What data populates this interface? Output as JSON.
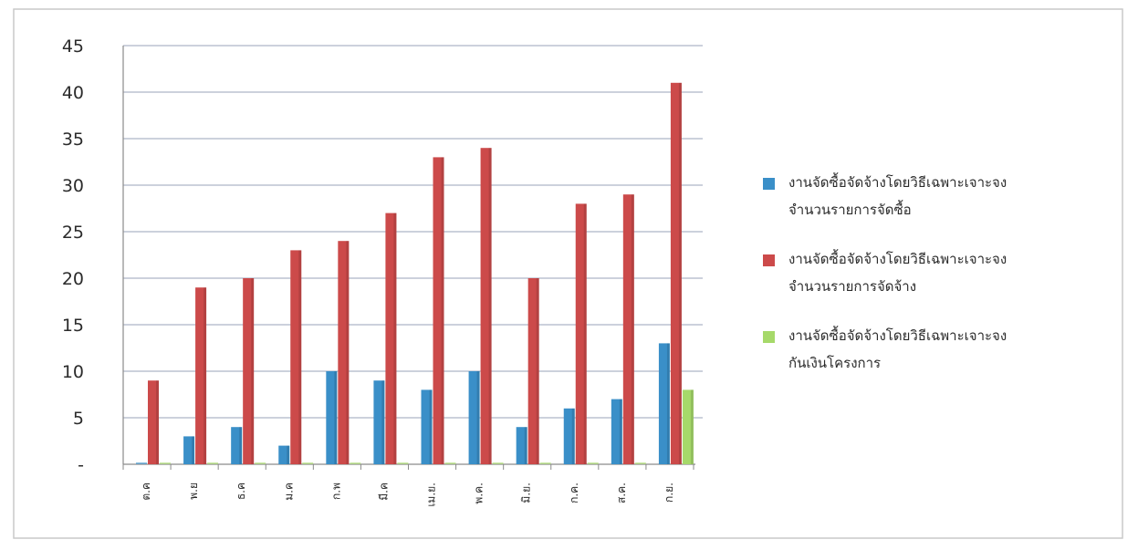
{
  "chart_data": {
    "type": "bar",
    "categories": [
      "ต.ค",
      "พ.ย",
      "ธ.ค",
      "ม.ค",
      "ก.พ",
      "มี.ค",
      "เม.ย.",
      "พ.ค.",
      "มิ.ย.",
      "ก.ค.",
      "ส.ค.",
      "ก.ย."
    ],
    "series": [
      {
        "name": "งานจัดซื้อจัดจ้างโดยวิธีเฉพาะเจาะจง จำนวนรายการจัดซื้อ",
        "name_lines": [
          "งานจัดซื้อจัดจ้างโดยวิธีเฉพาะเจาะจง",
          "จำนวนรายการจัดซื้อ"
        ],
        "color": "#3a8fc8",
        "values": [
          0,
          3,
          4,
          2,
          10,
          9,
          8,
          10,
          4,
          6,
          7,
          13
        ]
      },
      {
        "name": "งานจัดซื้อจัดจ้างโดยวิธีเฉพาะเจาะจง จำนวนรายการจัดจ้าง",
        "name_lines": [
          "งานจัดซื้อจัดจ้างโดยวิธีเฉพาะเจาะจง",
          "จำนวนรายการจัดจ้าง"
        ],
        "color": "#cc4a4a",
        "values": [
          9,
          19,
          20,
          23,
          24,
          27,
          33,
          34,
          20,
          28,
          29,
          41
        ]
      },
      {
        "name": "งานจัดซื้อจัดจ้างโดยวิธีเฉพาะเจาะจง กันเงินโครงการ",
        "name_lines": [
          "งานจัดซื้อจัดจ้างโดยวิธีเฉพาะเจาะจง",
          "กันเงินโครงการ"
        ],
        "color": "#a6d96a",
        "values": [
          0,
          0,
          0,
          0,
          0,
          0,
          0,
          0,
          0,
          0,
          0,
          8
        ]
      }
    ],
    "yticks": [
      "-",
      "5",
      "10",
      "15",
      "20",
      "25",
      "30",
      "35",
      "40",
      "45"
    ],
    "ylim": [
      0,
      45
    ],
    "grid": true,
    "legend_position": "right",
    "title": "",
    "xlabel": "",
    "ylabel": ""
  }
}
